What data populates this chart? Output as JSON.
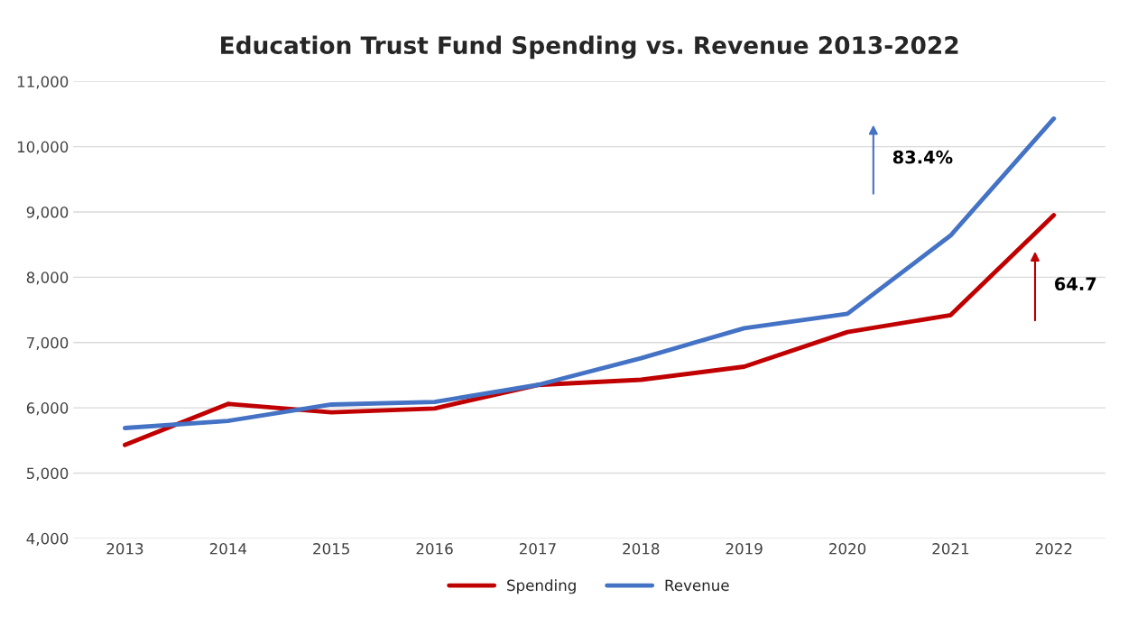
{
  "chart_data": {
    "type": "line",
    "title": "Education Trust Fund Spending vs. Revenue 2013-2022",
    "categories": [
      "2013",
      "2014",
      "2015",
      "2016",
      "2017",
      "2018",
      "2019",
      "2020",
      "2021",
      "2022"
    ],
    "series": [
      {
        "name": "Spending",
        "color": "#c00000",
        "values": [
          5430,
          6060,
          5930,
          5990,
          6350,
          6430,
          6630,
          7160,
          7420,
          8950
        ]
      },
      {
        "name": "Revenue",
        "color": "#4472c4",
        "values": [
          5690,
          5800,
          6050,
          6090,
          6350,
          6760,
          7220,
          7440,
          8640,
          10430
        ]
      }
    ],
    "ylim": [
      4000,
      11000
    ],
    "yticks": [
      {
        "value": 4000,
        "label": "4,000"
      },
      {
        "value": 5000,
        "label": "5,000"
      },
      {
        "value": 6000,
        "label": "6,000"
      },
      {
        "value": 7000,
        "label": "7,000"
      },
      {
        "value": 8000,
        "label": "8,000"
      },
      {
        "value": 9000,
        "label": "9,000"
      },
      {
        "value": 10000,
        "label": "10,000"
      },
      {
        "value": 11000,
        "label": "11,000"
      }
    ],
    "grid": "y",
    "legend": "bottom",
    "marker": "none",
    "line_style": "solid",
    "annotations": [
      "64.7",
      "83.4%"
    ]
  }
}
